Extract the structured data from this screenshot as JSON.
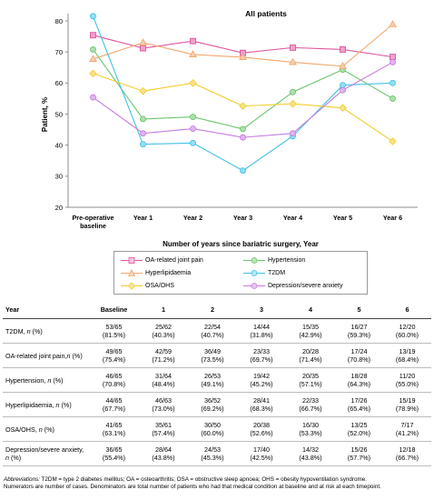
{
  "chart_data": {
    "type": "line",
    "title": "All patients",
    "xlabel": "Number of years since bariatric surgery, Year",
    "ylabel": "Patient, %",
    "ylim": [
      20,
      80
    ],
    "yticks": [
      20,
      30,
      40,
      50,
      60,
      70,
      80
    ],
    "categories": [
      "Pre-operative baseline",
      "Year 1",
      "Year 2",
      "Year 3",
      "Year 4",
      "Year 5",
      "Year 6"
    ],
    "category_lines": [
      [
        "Pre-operative",
        "baseline"
      ],
      [
        "Year 1"
      ],
      [
        "Year 2"
      ],
      [
        "Year 3"
      ],
      [
        "Year 4"
      ],
      [
        "Year 5"
      ],
      [
        "Year 6"
      ]
    ],
    "legend_position": "bottom",
    "grid": false,
    "series": [
      {
        "name": "OA-related joint pain",
        "marker": "square",
        "color": "#e0559e",
        "values": [
          75.4,
          71.2,
          73.5,
          69.7,
          71.4,
          70.8,
          68.4
        ]
      },
      {
        "name": "Hypertension",
        "marker": "circle",
        "color": "#6cc56c",
        "values": [
          70.8,
          48.4,
          49.1,
          45.2,
          57.1,
          64.3,
          55.0
        ]
      },
      {
        "name": "Hyperlipidaemia",
        "marker": "triangle",
        "color": "#f0a86e",
        "values": [
          67.7,
          73.0,
          69.2,
          68.3,
          66.7,
          65.4,
          78.9
        ]
      },
      {
        "name": "T2DM",
        "marker": "circle",
        "color": "#3fc3e8",
        "values": [
          81.5,
          40.3,
          40.7,
          31.8,
          42.9,
          59.3,
          60.0
        ]
      },
      {
        "name": "OSA/OHS",
        "marker": "diamond",
        "color": "#f2cd2a",
        "values": [
          63.1,
          57.4,
          60.0,
          52.6,
          53.3,
          52.0,
          41.2
        ]
      },
      {
        "name": "Depression/severe anxiety",
        "marker": "circle",
        "color": "#c77be0",
        "values": [
          55.4,
          43.8,
          45.3,
          42.5,
          43.8,
          57.7,
          66.7
        ]
      }
    ]
  },
  "table": {
    "headers": [
      "Year",
      "Baseline",
      "1",
      "2",
      "3",
      "4",
      "5",
      "6"
    ],
    "rows": [
      {
        "label": "T2DM, ",
        "label_n": "n",
        "label_tail": " (%)",
        "cells": [
          [
            "53/65",
            "(81.5%)"
          ],
          [
            "25/62",
            "(40.3%)"
          ],
          [
            "22/54",
            "(40.7%)"
          ],
          [
            "14/44",
            "(31.8%)"
          ],
          [
            "15/35",
            "(42.9%)"
          ],
          [
            "16/27",
            "(59.3%)"
          ],
          [
            "12/20",
            "(60.0%)"
          ]
        ]
      },
      {
        "label": "OA-related joint pain,",
        "label_n": "n",
        "label_tail": " (%)",
        "cells": [
          [
            "49/65",
            "(75.4%)"
          ],
          [
            "42/59",
            "(71.2%)"
          ],
          [
            "36/49",
            "(73.5%)"
          ],
          [
            "23/33",
            "(69.7%)"
          ],
          [
            "20/28",
            "(71.4%)"
          ],
          [
            "17/24",
            "(70.8%)"
          ],
          [
            "13/19",
            "(68.4%)"
          ]
        ]
      },
      {
        "label": "Hypertension, ",
        "label_n": "n",
        "label_tail": " (%)",
        "cells": [
          [
            "46/65",
            "(70.8%)"
          ],
          [
            "31/64",
            "(48.4%)"
          ],
          [
            "26/53",
            "(49.1%)"
          ],
          [
            "19/42",
            "(45.2%)"
          ],
          [
            "20/35",
            "(57.1%)"
          ],
          [
            "18/28",
            "(64.3%)"
          ],
          [
            "11/20",
            "(55.0%)"
          ]
        ]
      },
      {
        "label": "Hyperlipidaemia, ",
        "label_n": "n",
        "label_tail": " (%)",
        "cells": [
          [
            "44/65",
            "(67.7%)"
          ],
          [
            "46/63",
            "(73.0%)"
          ],
          [
            "36/52",
            "(69.2%)"
          ],
          [
            "28/41",
            "(68.3%)"
          ],
          [
            "22/33",
            "(66.7%)"
          ],
          [
            "17/26",
            "(65.4%)"
          ],
          [
            "15/19",
            "(78.9%)"
          ]
        ]
      },
      {
        "label": "OSA/OHS, ",
        "label_n": "n",
        "label_tail": " (%)",
        "cells": [
          [
            "41/65",
            "(63.1%)"
          ],
          [
            "35/61",
            "(57.4%)"
          ],
          [
            "30/50",
            "(60.0%)"
          ],
          [
            "20/38",
            "(52.6%)"
          ],
          [
            "16/30",
            "(53.3%)"
          ],
          [
            "13/25",
            "(52.0%)"
          ],
          [
            "7/17",
            "(41.2%)"
          ]
        ]
      },
      {
        "label": "Depression/severe anxiety, ",
        "label_n": "n",
        "label_tail": " (%)",
        "cells": [
          [
            "36/65",
            "(55.4%)"
          ],
          [
            "28/64",
            "(43.8%)"
          ],
          [
            "24/53",
            "(45.3%)"
          ],
          [
            "17/40",
            "(42.5%)"
          ],
          [
            "14/32",
            "(43.8%)"
          ],
          [
            "15/26",
            "(57.7%)"
          ],
          [
            "12/18",
            "(66.7%)"
          ]
        ]
      }
    ]
  },
  "footnote": {
    "abbr_label": "Abbreviations:",
    "abbr_text": " T2DM = type 2 diabetes mellitus; OA = osteoarthritis; OSA = obstructive sleep apnoea; OHS = obesity hypoventilation syndrome.",
    "note": "Numerators are number of cases. Denominators are total number of patients who had that medical condition at baseline and at risk at each timepoint."
  }
}
